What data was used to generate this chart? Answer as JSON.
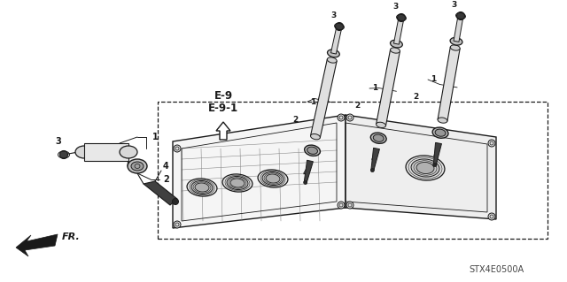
{
  "bg_color": "#ffffff",
  "fig_width": 6.4,
  "fig_height": 3.19,
  "dpi": 100,
  "part_number": "STX4E0500A",
  "fr_label": "FR.",
  "line_color": "#1a1a1a",
  "ref_label": "E-9\nE-9-1"
}
